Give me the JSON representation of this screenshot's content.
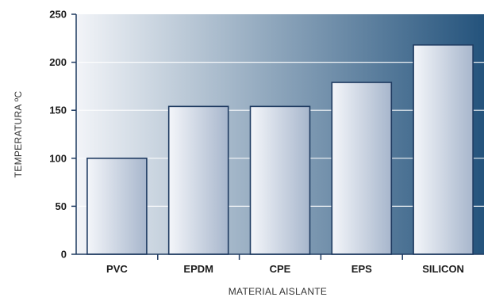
{
  "chart_data": {
    "type": "bar",
    "categories": [
      "PVC",
      "EPDM",
      "CPE",
      "EPS",
      "SILICON"
    ],
    "values": [
      100,
      154,
      154,
      179,
      218
    ],
    "title": "",
    "xlabel": "MATERIAL AISLANTE",
    "ylabel": "TEMPERATURA ºC",
    "ylim": [
      0,
      250
    ],
    "yticks": [
      0,
      50,
      100,
      150,
      200,
      250
    ],
    "grid": true,
    "colors": {
      "background_light": "#f2f4f8",
      "background_dark": "#24537c",
      "bar_light": "#f4f6fa",
      "bar_dark": "#a7b6cc",
      "bar_border": "#1f3b61",
      "axis": "#1f3b61",
      "gridline": "#ffffff"
    }
  }
}
